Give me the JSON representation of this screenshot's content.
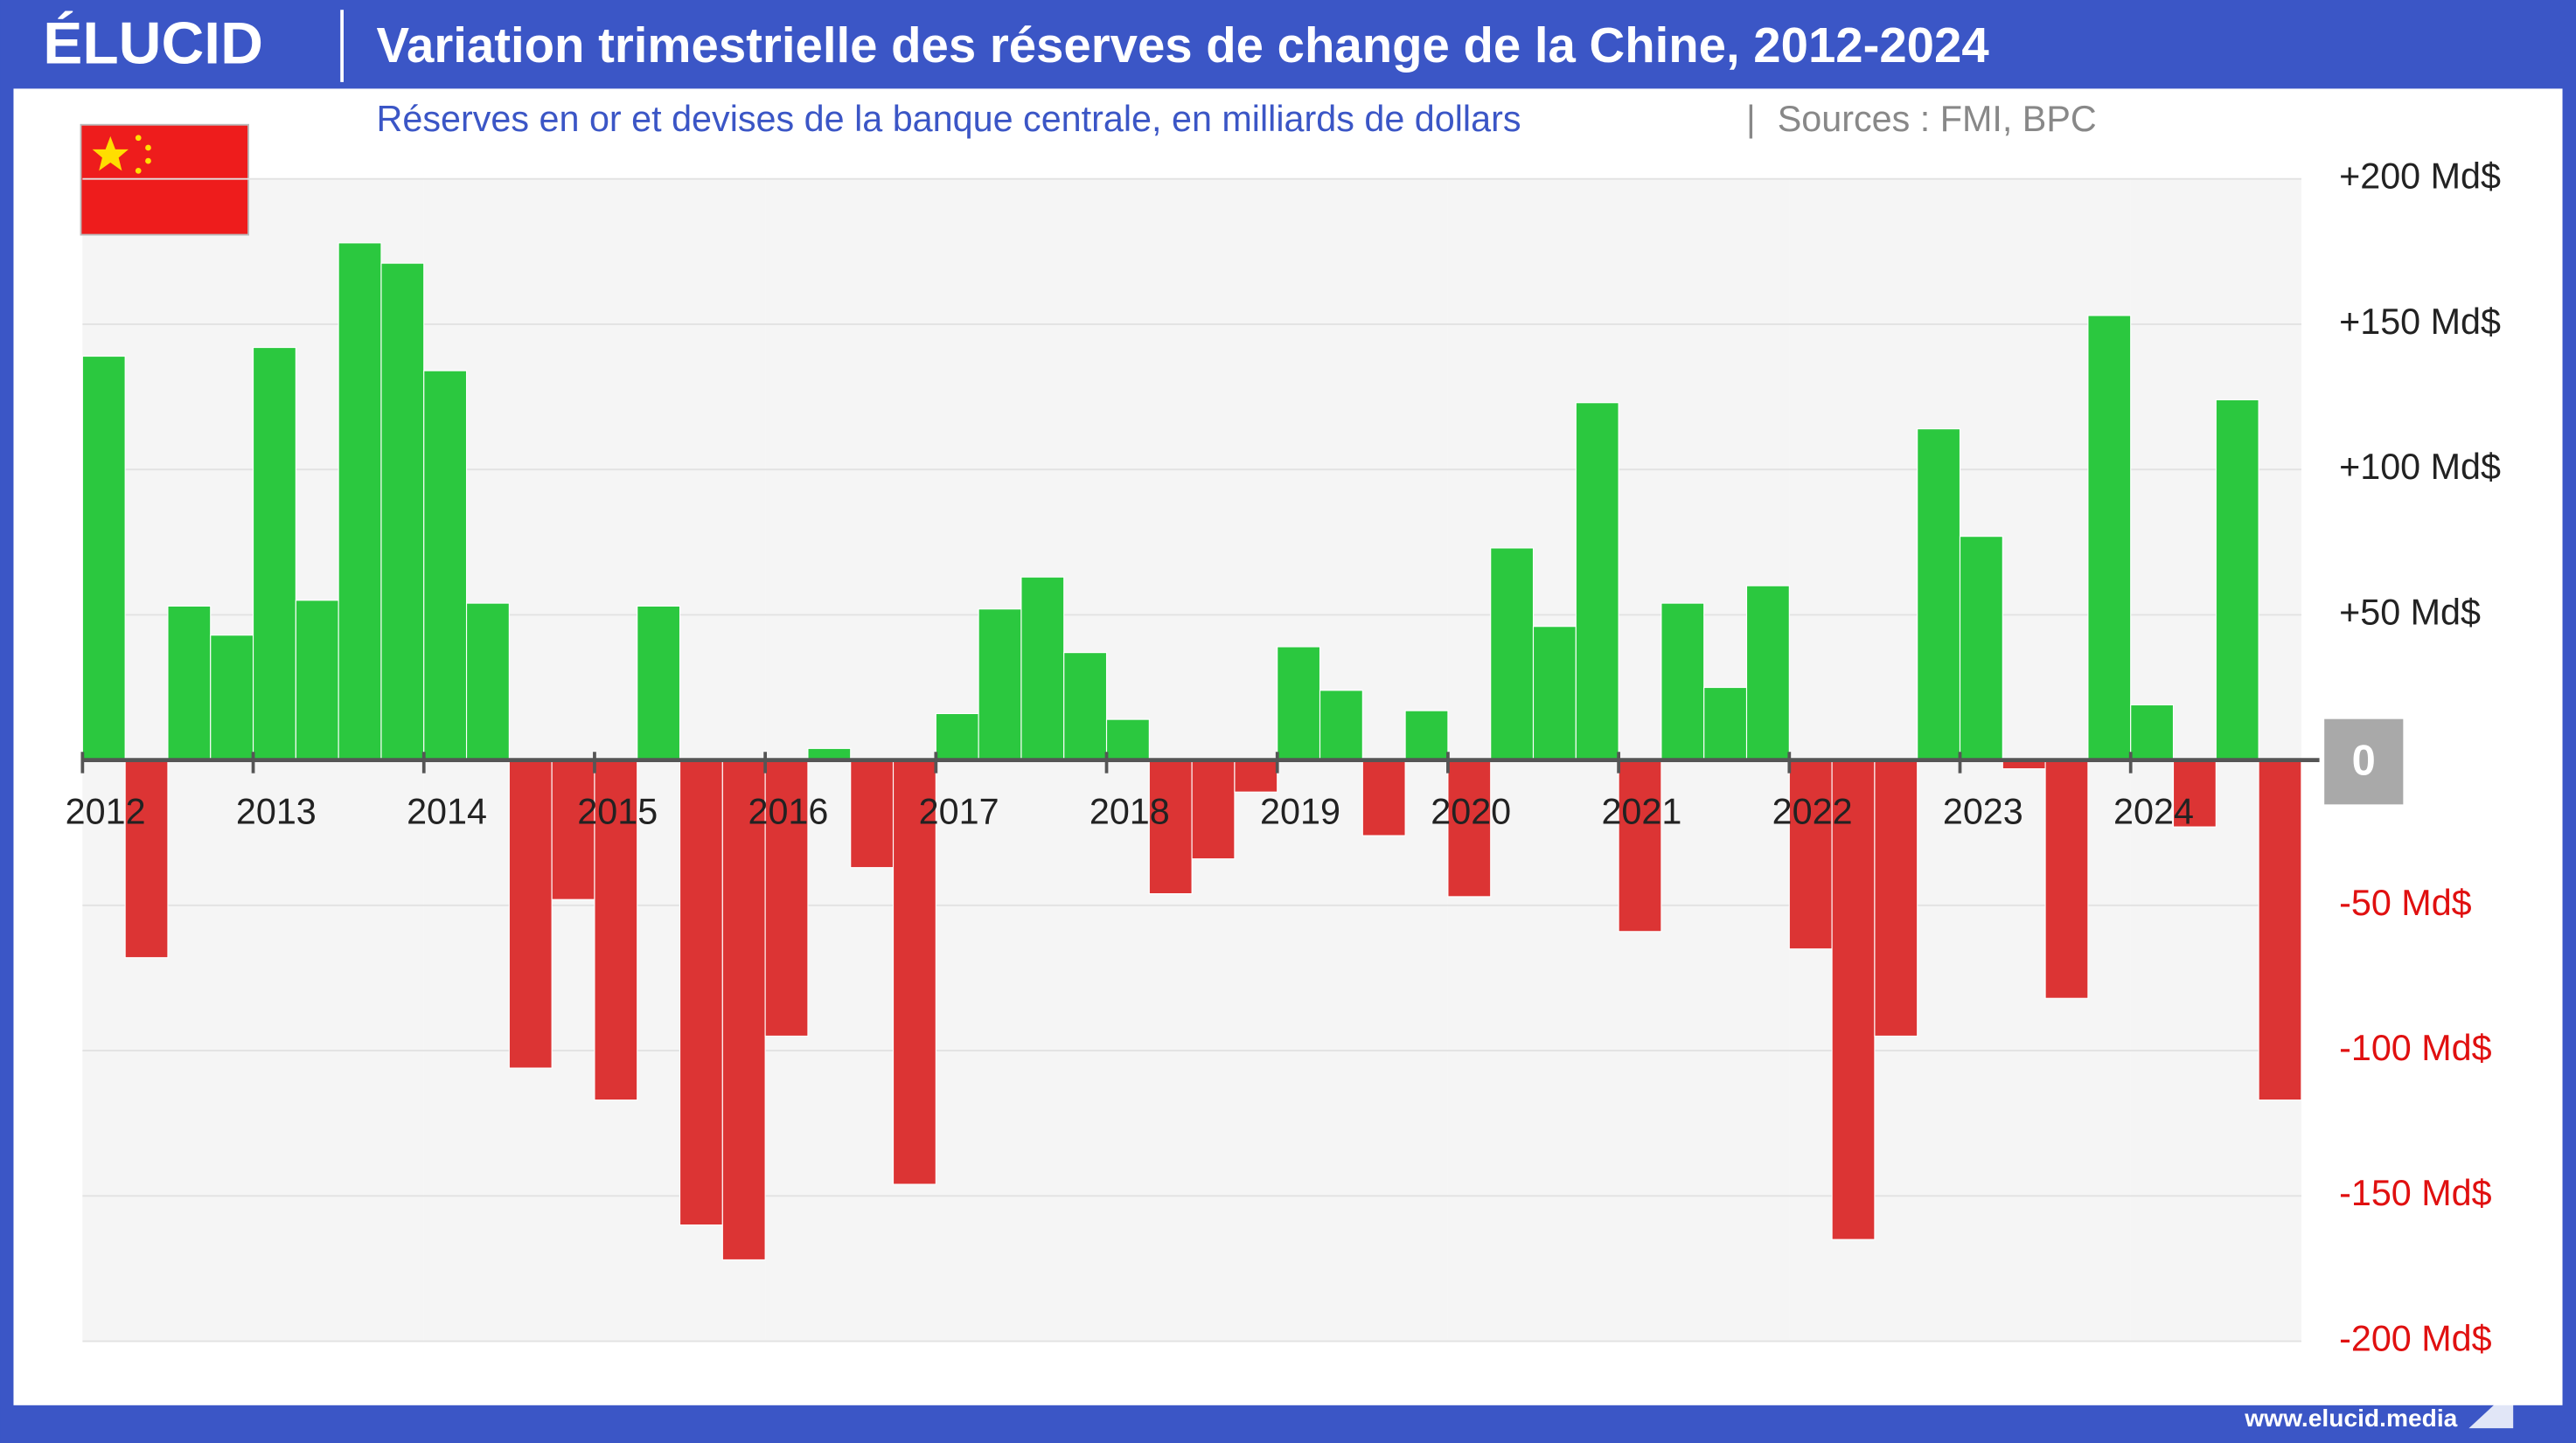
{
  "chart_data": {
    "type": "bar",
    "logo": "ÉLUCID",
    "title": "Variation trimestrielle des réserves de change de la Chine, 2012-2024",
    "subtitle": "Réserves en or et devises de la banque centrale, en milliards de dollars",
    "source": "Sources : FMI, BPC",
    "website": "www.elucid.media",
    "categories": [
      "2012",
      null,
      null,
      null,
      "2013",
      null,
      null,
      null,
      "2014",
      null,
      null,
      null,
      "2015",
      null,
      null,
      null,
      "2016",
      null,
      null,
      null,
      "2017",
      null,
      null,
      null,
      "2018",
      null,
      null,
      null,
      "2019",
      null,
      null,
      null,
      "2020",
      null,
      null,
      null,
      "2021",
      null,
      null,
      null,
      "2022",
      null,
      null,
      null,
      "2023",
      null,
      null,
      null,
      "2024",
      null,
      null,
      null
    ],
    "values": [
      139,
      -68,
      53,
      43,
      142,
      55,
      178,
      171,
      134,
      54,
      -106,
      -48,
      -117,
      53,
      -160,
      -172,
      -95,
      4,
      -37,
      -146,
      16,
      52,
      63,
      37,
      14,
      -46,
      -34,
      -11,
      39,
      24,
      -26,
      17,
      -47,
      73,
      46,
      123,
      -59,
      54,
      25,
      60,
      -65,
      -165,
      -95,
      114,
      77,
      -3,
      -82,
      153,
      19,
      -23,
      124,
      -117
    ],
    "positive_color": "#2bc83f",
    "negative_color": "#dc3434",
    "ylim": [
      -200,
      200
    ],
    "yticks": [
      {
        "value": 200,
        "label": "+200 Md$"
      },
      {
        "value": 150,
        "label": "+150 Md$"
      },
      {
        "value": 100,
        "label": "+100 Md$"
      },
      {
        "value": 50,
        "label": "+50 Md$"
      },
      0,
      {
        "value": -50,
        "label": "-50 Md$"
      },
      {
        "value": -100,
        "label": "-100 Md$"
      },
      {
        "value": -150,
        "label": "-150 Md$"
      },
      {
        "value": -200,
        "label": "-200 Md$"
      }
    ],
    "grid": true
  }
}
